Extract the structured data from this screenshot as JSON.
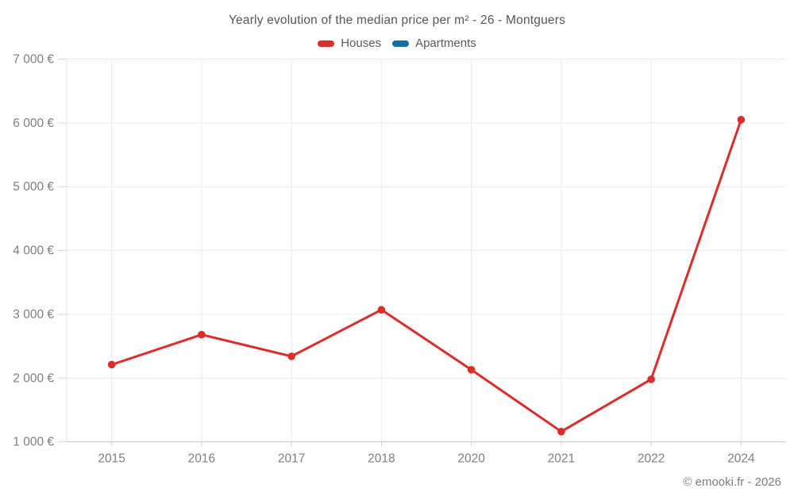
{
  "page": {
    "title": "Yearly evolution of the median price per m² - 26 - Montguers",
    "attribution": "© emooki.fr - 2026"
  },
  "colors": {
    "houses": "#dd2c2c",
    "apartments": "#1170a2",
    "grid": "#ececec",
    "axis_line": "#c9c9c9",
    "tick": "#d6d6d6",
    "tick_label": "#7f7f7f",
    "title_text": "#555555"
  },
  "legend": {
    "items": [
      {
        "label": "Houses",
        "color": "#dd2c2c"
      },
      {
        "label": "Apartments",
        "color": "#1170a2"
      }
    ]
  },
  "chart_data": {
    "type": "line",
    "title": "Yearly evolution of the median price per m² - 26 - Montguers",
    "categories": [
      "2015",
      "2016",
      "2017",
      "2018",
      "2020",
      "2021",
      "2022",
      "2024"
    ],
    "series": [
      {
        "name": "Houses",
        "color": "#dd2c2c",
        "values": [
          2210,
          2680,
          2340,
          3070,
          2130,
          1160,
          1980,
          6050
        ]
      },
      {
        "name": "Apartments",
        "color": "#1170a2",
        "values": []
      }
    ],
    "xlabel": "",
    "ylabel": "",
    "ylim": [
      1000,
      7000
    ],
    "ytick_values": [
      1000,
      2000,
      3000,
      4000,
      5000,
      6000,
      7000
    ],
    "ytick_labels": [
      "1 000 €",
      "2 000 €",
      "3 000 €",
      "4 000 €",
      "5 000 €",
      "6 000 €",
      "7 000 €"
    ],
    "grid": true,
    "legend_position": "top",
    "marker": "circle"
  }
}
